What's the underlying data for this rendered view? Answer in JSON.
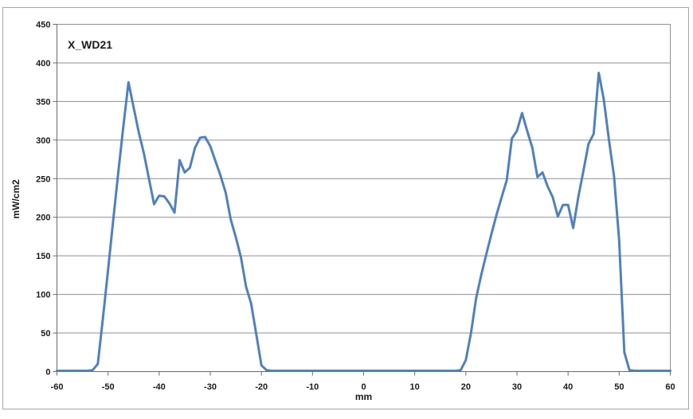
{
  "window": {
    "background_color": "#FFFFFF",
    "frame_border_color": "#A6A6A6"
  },
  "chart": {
    "title": "X_WD21",
    "x_axis_title": "mm",
    "y_axis_title": "mW/cm2"
  },
  "style": {
    "gridline_color": "#8F8F8F",
    "axis_color": "#6B6B6B",
    "tick_color": "#6B6B6B",
    "text_color": "#1A1A1A",
    "series_color": "#4F81BD"
  },
  "chart_data": {
    "type": "line",
    "title": "X_WD21",
    "xlabel": "mm",
    "ylabel": "mW/cm2",
    "xlim": [
      -60,
      60
    ],
    "ylim": [
      0,
      450
    ],
    "x_ticks": [
      -60,
      -50,
      -40,
      -30,
      -20,
      -10,
      0,
      10,
      20,
      30,
      40,
      50,
      60
    ],
    "y_ticks": [
      0,
      50,
      100,
      150,
      200,
      250,
      300,
      350,
      400,
      450
    ],
    "grid": true,
    "legend": false,
    "series": [
      {
        "name": "X_WD21",
        "color": "#4F81BD",
        "line_width": 3,
        "x": [
          -60,
          -59,
          -58,
          -57,
          -56,
          -55,
          -54,
          -53,
          -52,
          -51,
          -50,
          -49,
          -48,
          -47,
          -46,
          -45,
          -44,
          -43,
          -42,
          -41,
          -40,
          -39,
          -38,
          -37,
          -36,
          -35,
          -34,
          -33,
          -32,
          -31,
          -30,
          -29,
          -28,
          -27,
          -26,
          -25,
          -24,
          -23,
          -22,
          -21,
          -20,
          -19,
          -18,
          -17,
          -16,
          -15,
          -14,
          -13,
          -12,
          -11,
          -10,
          -9,
          -8,
          -7,
          -6,
          -5,
          -4,
          -3,
          -2,
          -1,
          0,
          1,
          2,
          3,
          4,
          5,
          6,
          7,
          8,
          9,
          10,
          11,
          12,
          13,
          14,
          15,
          16,
          17,
          18,
          19,
          20,
          21,
          22,
          23,
          24,
          25,
          26,
          27,
          28,
          29,
          30,
          31,
          32,
          33,
          34,
          35,
          36,
          37,
          38,
          39,
          40,
          41,
          42,
          43,
          44,
          45,
          46,
          47,
          48,
          49,
          50,
          51,
          52,
          53,
          54,
          55,
          56,
          57,
          58,
          59,
          60
        ],
        "y": [
          1,
          1,
          1,
          1,
          1,
          1,
          1,
          2,
          10,
          70,
          132,
          196,
          258,
          318,
          375,
          342,
          310,
          283,
          250,
          217,
          228,
          227,
          218,
          206,
          274,
          258,
          264,
          290,
          303,
          304,
          292,
          273,
          254,
          232,
          197,
          174,
          148,
          110,
          88,
          48,
          8,
          2,
          1,
          1,
          1,
          1,
          1,
          1,
          1,
          1,
          1,
          1,
          1,
          1,
          1,
          1,
          1,
          1,
          1,
          1,
          1,
          1,
          1,
          1,
          1,
          1,
          1,
          1,
          1,
          1,
          1,
          1,
          1,
          1,
          1,
          1,
          1,
          1,
          1,
          2,
          15,
          50,
          95,
          125,
          152,
          178,
          203,
          226,
          248,
          302,
          312,
          335,
          312,
          290,
          252,
          258,
          240,
          226,
          201,
          216,
          216,
          186,
          226,
          260,
          295,
          308,
          387,
          352,
          300,
          253,
          170,
          25,
          2,
          1,
          1,
          1,
          1,
          1,
          1,
          1,
          1
        ]
      }
    ]
  }
}
